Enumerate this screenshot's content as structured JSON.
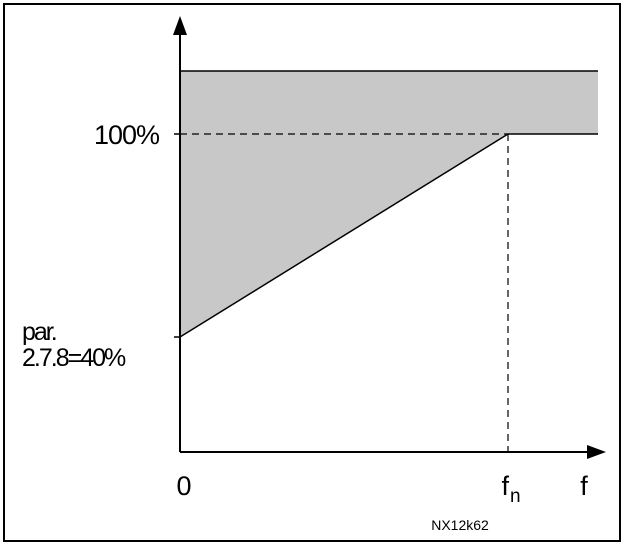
{
  "labels": {
    "y_top": "100%",
    "y_min_line1": "par.",
    "y_min_line2": "2.7.8=40%",
    "x_zero": "0",
    "x_fn_base": "f",
    "x_fn_sub": "n",
    "x_axis": "f",
    "code": "NX12k62"
  },
  "colors": {
    "region_fill": "#c8c8c8",
    "line": "#000000",
    "frame": "#000000"
  },
  "chart_data": {
    "type": "area",
    "x": [
      "0",
      "fn",
      "beyond fn"
    ],
    "upper_limit_percent": [
      120,
      120,
      120
    ],
    "lower_limit_percent": [
      40,
      100,
      100
    ],
    "reference_line_percent": 100,
    "reference_frequency": "fn"
  }
}
